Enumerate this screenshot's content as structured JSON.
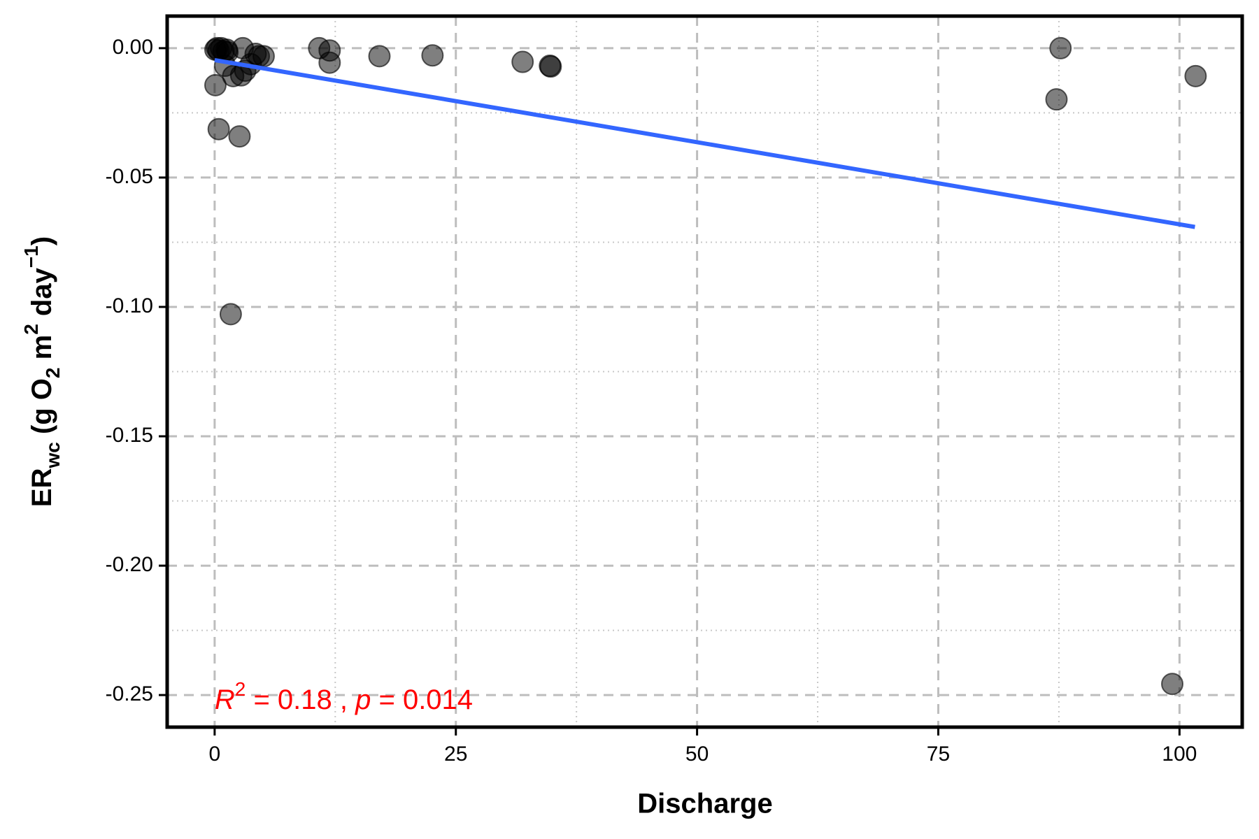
{
  "chart_data": {
    "type": "scatter",
    "xlabel": "Discharge",
    "ylabel_parts": [
      {
        "text": "ER"
      },
      {
        "text": "wc",
        "shift": "sub"
      },
      {
        "text": " (g O"
      },
      {
        "text": "2",
        "shift": "sub"
      },
      {
        "text": " m"
      },
      {
        "text": "2",
        "shift": "super"
      },
      {
        "text": " day"
      },
      {
        "text": "−1",
        "shift": "super"
      },
      {
        "text": ")"
      }
    ],
    "annotation_parts": [
      {
        "text": "R",
        "italic": true
      },
      {
        "text": "2",
        "shift": "super"
      },
      {
        "text": " = 0.18 , "
      },
      {
        "text": "p",
        "italic": true
      },
      {
        "text": " = 0.014"
      }
    ],
    "annotation_color": "#ff0000",
    "xlim": [
      -4.92,
      106.5
    ],
    "ylim": [
      -0.2624,
      0.0124
    ],
    "xticks": [
      0,
      25,
      50,
      75,
      100
    ],
    "yticks": [
      {
        "value": 0,
        "label": "0.00"
      },
      {
        "value": -0.05,
        "label": "-0.05"
      },
      {
        "value": -0.1,
        "label": "-0.10"
      },
      {
        "value": -0.15,
        "label": "-0.15"
      },
      {
        "value": -0.2,
        "label": "-0.20"
      },
      {
        "value": -0.25,
        "label": "-0.25"
      }
    ],
    "x_minor_grid": [
      12.5,
      37.5,
      62.5,
      87.5
    ],
    "y_minor_grid": [
      -0.025,
      -0.075,
      -0.125,
      -0.175,
      -0.225
    ],
    "grid": true,
    "series": [
      {
        "color": "#000000",
        "x": [
          0.08,
          0.25,
          0.42,
          0.67,
          0.92,
          1.33,
          1.25,
          1.08,
          1.92,
          0.08,
          0.42,
          2.58,
          1.67,
          2.92,
          2.75,
          3.17,
          3.75,
          4.25,
          4.58,
          5.08,
          10.83,
          11.92,
          11.92,
          17.08,
          22.58,
          31.92,
          34.75,
          34.83,
          87.67,
          87.25,
          101.67,
          99.25
        ],
        "values": [
          -0.0006,
          0,
          -0.0009,
          0,
          -0.0012,
          -0.0015,
          -0.0006,
          -0.0068,
          -0.0108,
          -0.0143,
          -0.0313,
          -0.0341,
          -0.1028,
          0,
          -0.0105,
          -0.0087,
          -0.0062,
          -0.0022,
          -0.0031,
          -0.0031,
          0,
          -0.0009,
          -0.0056,
          -0.0031,
          -0.0028,
          -0.0053,
          -0.0068,
          -0.0071,
          0,
          -0.0198,
          -0.0108,
          -0.2457
        ]
      }
    ],
    "fit": {
      "color": "#3366ff",
      "x": [
        0,
        101.6
      ],
      "values": [
        -0.0046,
        -0.0691
      ]
    }
  }
}
